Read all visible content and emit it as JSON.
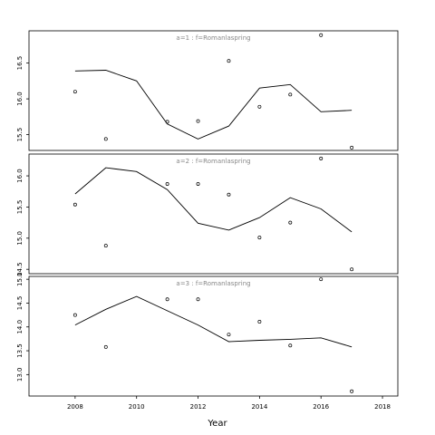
{
  "chart_data": {
    "type": "line",
    "xlabel": "Year",
    "xlim": [
      2006.5,
      2018.5
    ],
    "x_ticks": [
      2008,
      2010,
      2012,
      2014,
      2016,
      2018
    ],
    "x_tick_labels": [
      "2008",
      "2010",
      "2012",
      "2014",
      "2016",
      "2018"
    ],
    "panels": [
      {
        "strip": "a=1 : f=Romanlaspring",
        "ylim": [
          15.28,
          16.95
        ],
        "y_ticks": [
          15.5,
          16.0,
          16.5
        ],
        "y_tick_labels": [
          "15.5",
          "16.0",
          "16.5"
        ],
        "x": [
          2008,
          2009,
          2010,
          2011,
          2012,
          2013,
          2014,
          2015,
          2016,
          2017
        ],
        "points": [
          16.1,
          15.44,
          null,
          15.68,
          15.69,
          16.53,
          15.89,
          16.06,
          16.89,
          15.32
        ],
        "line": [
          16.39,
          16.4,
          16.25,
          15.65,
          15.44,
          15.62,
          16.15,
          16.2,
          15.82,
          15.84
        ]
      },
      {
        "strip": "a=2 : f=Romanlaspring",
        "ylim": [
          14.43,
          16.35
        ],
        "y_ticks": [
          14.5,
          15.0,
          15.5,
          16.0
        ],
        "y_tick_labels": [
          "14.5",
          "15.0",
          "15.5",
          "16.0"
        ],
        "x": [
          2008,
          2009,
          2010,
          2011,
          2012,
          2013,
          2014,
          2015,
          2016,
          2017
        ],
        "points": [
          15.54,
          14.88,
          null,
          15.87,
          15.87,
          15.7,
          15.01,
          15.25,
          16.28,
          14.5
        ],
        "line": [
          15.71,
          16.13,
          16.07,
          15.78,
          15.24,
          15.13,
          15.33,
          15.65,
          15.47,
          15.1
        ]
      },
      {
        "strip": "a=3 : f=Romanlaspring",
        "ylim": [
          12.55,
          15.06
        ],
        "y_ticks": [
          13.0,
          13.5,
          14.0,
          14.5,
          15.0
        ],
        "y_tick_labels": [
          "13.0",
          "13.5",
          "14.0",
          "14.5",
          "15.0"
        ],
        "x": [
          2008,
          2009,
          2010,
          2011,
          2012,
          2013,
          2014,
          2015,
          2016,
          2017
        ],
        "points": [
          14.25,
          13.58,
          null,
          14.58,
          14.58,
          13.84,
          14.11,
          13.61,
          15.0,
          12.65
        ],
        "line": [
          14.04,
          14.37,
          14.64,
          14.34,
          14.04,
          13.69,
          13.72,
          13.74,
          13.77,
          13.58
        ]
      }
    ]
  }
}
